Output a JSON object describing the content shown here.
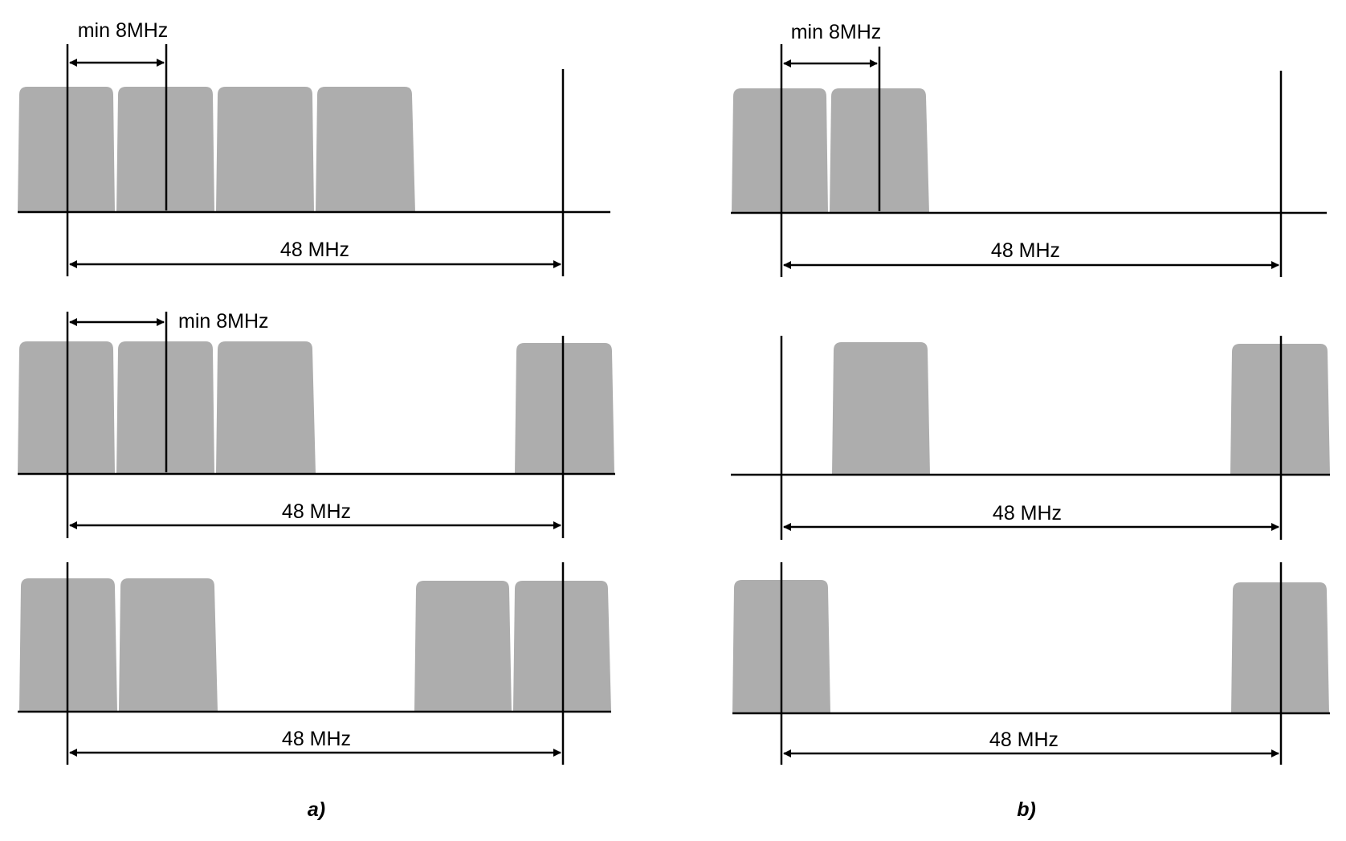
{
  "colors": {
    "channel_block": "#adadad",
    "line": "#000000",
    "background": "#ffffff"
  },
  "columns": [
    {
      "caption": "a)",
      "panels": [
        {
          "span_label": "48 MHz",
          "min_label": "min 8MHz"
        },
        {
          "span_label": "48 MHz",
          "min_label": "min 8MHz"
        },
        {
          "span_label": "48 MHz"
        }
      ]
    },
    {
      "caption": "b)",
      "panels": [
        {
          "span_label": "48 MHz",
          "min_label": "min 8MHz"
        },
        {
          "span_label": "48 MHz"
        },
        {
          "span_label": "48 MHz"
        }
      ]
    }
  ]
}
